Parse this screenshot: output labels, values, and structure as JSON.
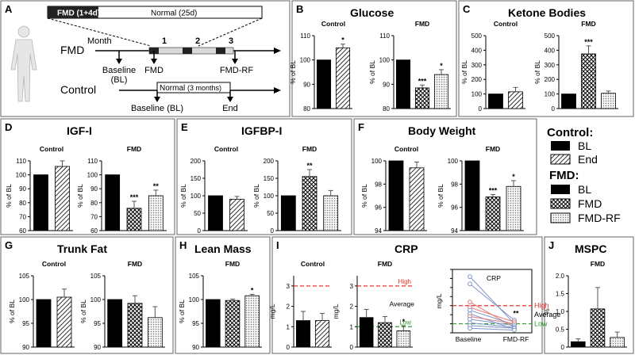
{
  "colors": {
    "panel_border": "#666666",
    "bar_black": "#000000",
    "ref_red": "#e8332a",
    "ref_green": "#2ca02c",
    "lines_blue": "#7f96c8",
    "lines_pink": "#e07a7a"
  },
  "panel_a": {
    "letter": "A",
    "fmd_box_label": "FMD (1+4d)",
    "normal_box_label": "Normal (25d)",
    "fmd_row_label": "FMD",
    "month_label": "Month",
    "month_ticks": [
      "1",
      "2",
      "3"
    ],
    "baseline_label": "Baseline",
    "bl_label": "(BL)",
    "fmd_point_label": "FMD",
    "fmdrf_point_label": "FMD-RF",
    "control_row_label": "Control",
    "control_normal_label": "Normal",
    "control_normal_sub": "(3 months)",
    "control_baseline_label": "Baseline (BL)",
    "control_end_label": "End"
  },
  "legend": {
    "control_title": "Control:",
    "control_items": [
      "BL",
      "End"
    ],
    "fmd_title": "FMD:",
    "fmd_items": [
      "BL",
      "FMD",
      "FMD-RF"
    ]
  },
  "chart_data": [
    {
      "id": "B",
      "letter": "B",
      "title": "Glucose",
      "type": "bar",
      "ylabel": "% of BL",
      "subplots": [
        {
          "label": "Control",
          "ylim": [
            80,
            110
          ],
          "ticks": [
            80,
            90,
            100,
            110
          ],
          "categories": [
            "BL",
            "End"
          ],
          "values": [
            100,
            105
          ],
          "errors": [
            0,
            1.5
          ],
          "stars": [
            "",
            "*"
          ]
        },
        {
          "label": "FMD",
          "ylim": [
            80,
            110
          ],
          "ticks": [
            80,
            90,
            100,
            110
          ],
          "categories": [
            "BL",
            "FMD",
            "FMD-RF"
          ],
          "values": [
            100,
            88.5,
            94
          ],
          "errors": [
            0,
            1.2,
            2
          ],
          "stars": [
            "",
            "***",
            "*"
          ]
        }
      ]
    },
    {
      "id": "C",
      "letter": "C",
      "title": "Ketone Bodies",
      "type": "bar",
      "ylabel": "% of BL",
      "subplots": [
        {
          "label": "Control",
          "ylim": [
            0,
            500
          ],
          "ticks": [
            0,
            100,
            200,
            300,
            400,
            500
          ],
          "categories": [
            "BL",
            "End"
          ],
          "values": [
            100,
            115
          ],
          "errors": [
            0,
            30
          ],
          "stars": [
            "",
            ""
          ]
        },
        {
          "label": "FMD",
          "ylim": [
            0,
            500
          ],
          "ticks": [
            0,
            100,
            200,
            300,
            400,
            500
          ],
          "categories": [
            "BL",
            "FMD",
            "FMD-RF"
          ],
          "values": [
            100,
            375,
            105
          ],
          "errors": [
            0,
            55,
            15
          ],
          "stars": [
            "",
            "***",
            ""
          ]
        }
      ]
    },
    {
      "id": "D",
      "letter": "D",
      "title": "IGF-I",
      "type": "bar",
      "ylabel": "% of BL",
      "subplots": [
        {
          "label": "Control",
          "ylim": [
            60,
            110
          ],
          "ticks": [
            60,
            70,
            80,
            90,
            100,
            110
          ],
          "categories": [
            "BL",
            "End"
          ],
          "values": [
            100,
            106
          ],
          "errors": [
            0,
            4
          ],
          "stars": [
            "",
            ""
          ]
        },
        {
          "label": "FMD",
          "ylim": [
            60,
            110
          ],
          "ticks": [
            60,
            70,
            80,
            90,
            100,
            110
          ],
          "categories": [
            "BL",
            "FMD",
            "FMD-RF"
          ],
          "values": [
            100,
            76,
            85
          ],
          "errors": [
            0,
            5,
            4
          ],
          "stars": [
            "",
            "***",
            "**"
          ]
        }
      ]
    },
    {
      "id": "E",
      "letter": "E",
      "title": "IGFBP-I",
      "type": "bar",
      "ylabel": "% of BL",
      "subplots": [
        {
          "label": "Control",
          "ylim": [
            0,
            200
          ],
          "ticks": [
            0,
            50,
            100,
            150,
            200
          ],
          "categories": [
            "BL",
            "End"
          ],
          "values": [
            100,
            90
          ],
          "errors": [
            0,
            8
          ],
          "stars": [
            "",
            ""
          ]
        },
        {
          "label": "FMD",
          "ylim": [
            0,
            200
          ],
          "ticks": [
            0,
            50,
            100,
            150,
            200
          ],
          "categories": [
            "BL",
            "FMD",
            "FMD-RF"
          ],
          "values": [
            100,
            155,
            100
          ],
          "errors": [
            0,
            20,
            15
          ],
          "stars": [
            "",
            "**",
            ""
          ]
        }
      ]
    },
    {
      "id": "F",
      "letter": "F",
      "title": "Body Weight",
      "type": "bar",
      "ylabel": "% of BL",
      "subplots": [
        {
          "label": "Control",
          "ylim": [
            94,
            100
          ],
          "ticks": [
            94,
            96,
            98,
            100
          ],
          "categories": [
            "BL",
            "End"
          ],
          "values": [
            100,
            99.4
          ],
          "errors": [
            0,
            0.5
          ],
          "stars": [
            "",
            ""
          ]
        },
        {
          "label": "FMD",
          "ylim": [
            94,
            100
          ],
          "ticks": [
            94,
            96,
            98,
            100
          ],
          "categories": [
            "BL",
            "FMD",
            "FMD-RF"
          ],
          "values": [
            100,
            96.9,
            97.8
          ],
          "errors": [
            0,
            0.2,
            0.5
          ],
          "stars": [
            "",
            "***",
            "*"
          ]
        }
      ]
    },
    {
      "id": "G",
      "letter": "G",
      "title": "Trunk Fat",
      "type": "bar",
      "ylabel": "% of BL",
      "subplots": [
        {
          "label": "Control",
          "ylim": [
            90,
            105
          ],
          "ticks": [
            90,
            95,
            100,
            105
          ],
          "categories": [
            "BL",
            "End"
          ],
          "values": [
            100,
            100.5
          ],
          "errors": [
            0,
            1.7
          ],
          "stars": [
            "",
            ""
          ]
        },
        {
          "label": "FMD",
          "ylim": [
            90,
            105
          ],
          "ticks": [
            90,
            95,
            100,
            105
          ],
          "categories": [
            "BL",
            "FMD",
            "FMD-RF"
          ],
          "values": [
            100,
            99.2,
            96.2
          ],
          "errors": [
            0,
            1.6,
            2.3
          ],
          "stars": [
            "",
            "",
            ""
          ]
        }
      ]
    },
    {
      "id": "H",
      "letter": "H",
      "title": "Lean Mass",
      "type": "bar",
      "ylabel": "% of BL",
      "subplots": [
        {
          "label": "FMD",
          "ylim": [
            90,
            105
          ],
          "ticks": [
            90,
            95,
            100,
            105
          ],
          "categories": [
            "BL",
            "FMD",
            "FMD-RF"
          ],
          "values": [
            100,
            99.8,
            100.8
          ],
          "errors": [
            0,
            0.3,
            0.3
          ],
          "stars": [
            "",
            "",
            "*"
          ]
        }
      ]
    },
    {
      "id": "I",
      "letter": "I",
      "title": "CRP",
      "type": "bar",
      "ylabel": "mg/L",
      "subplots": [
        {
          "label": "Control",
          "ylim": [
            0,
            3.5
          ],
          "ticks": [
            0,
            1,
            2,
            3
          ],
          "categories": [
            "BL",
            "End"
          ],
          "values": [
            1.3,
            1.3
          ],
          "errors": [
            0.45,
            0.35
          ],
          "stars": [
            "",
            ""
          ],
          "ref_lines": [
            {
              "value": 3,
              "color": "#e8332a"
            }
          ]
        },
        {
          "label": "FMD",
          "ylim": [
            0,
            3.5
          ],
          "ticks": [
            0,
            1,
            2,
            3
          ],
          "categories": [
            "BL",
            "FMD",
            "FMD-RF"
          ],
          "values": [
            1.45,
            1.2,
            0.8
          ],
          "errors": [
            0.4,
            0.3,
            0.25
          ],
          "stars": [
            "",
            "",
            "*"
          ],
          "ref_lines": [
            {
              "value": 3,
              "color": "#e8332a",
              "label": "High"
            },
            {
              "value": 1,
              "color": "#2ca02c",
              "label": "Low"
            }
          ],
          "band_label": "Average"
        }
      ]
    },
    {
      "id": "I2",
      "type": "line",
      "title": "CRP",
      "ylabel": "mg/L",
      "ylim": [
        0,
        7
      ],
      "ticks": [
        0,
        1,
        2,
        3,
        4,
        5,
        6,
        7
      ],
      "x": [
        "Baseline",
        "FMD-RF"
      ],
      "stars": "**",
      "ref_lines": [
        {
          "value": 3,
          "color": "#e8332a",
          "label": "High"
        },
        {
          "value": 1,
          "color": "#2ca02c",
          "label": "Low"
        }
      ],
      "band_label": "Average",
      "series": [
        {
          "values": [
            6.2,
            1.0
          ],
          "color": "#7f96c8"
        },
        {
          "values": [
            5.4,
            1.4
          ],
          "color": "#7f96c8"
        },
        {
          "values": [
            3.4,
            0.6
          ],
          "color": "#e07a7a"
        },
        {
          "values": [
            2.8,
            1.2
          ],
          "color": "#e07a7a"
        },
        {
          "values": [
            2.5,
            0.9
          ],
          "color": "#7f96c8"
        },
        {
          "values": [
            2.1,
            0.4
          ],
          "color": "#7f96c8"
        },
        {
          "values": [
            1.8,
            1.0
          ],
          "color": "#e07a7a"
        },
        {
          "values": [
            1.5,
            0.8
          ],
          "color": "#7f96c8"
        },
        {
          "values": [
            1.1,
            0.6
          ],
          "color": "#7f96c8"
        },
        {
          "values": [
            0.8,
            0.5
          ],
          "color": "#7f96c8"
        },
        {
          "values": [
            0.5,
            0.3
          ],
          "color": "#7f96c8"
        }
      ]
    },
    {
      "id": "J",
      "letter": "J",
      "title": "MSPC",
      "type": "bar",
      "ylabel": "%",
      "subplots": [
        {
          "label": "FMD",
          "ylim": [
            0,
            2.0
          ],
          "ticks": [
            0,
            0.5,
            1.0,
            1.5,
            2.0
          ],
          "tick_labels": [
            "0",
            "0.5",
            "1.0",
            "1.5",
            "2.0"
          ],
          "categories": [
            "BL",
            "FMD",
            "FMD-RF"
          ],
          "values": [
            0.15,
            1.07,
            0.27
          ],
          "errors": [
            0.08,
            0.6,
            0.15
          ],
          "stars": [
            "",
            "",
            ""
          ]
        }
      ]
    }
  ]
}
